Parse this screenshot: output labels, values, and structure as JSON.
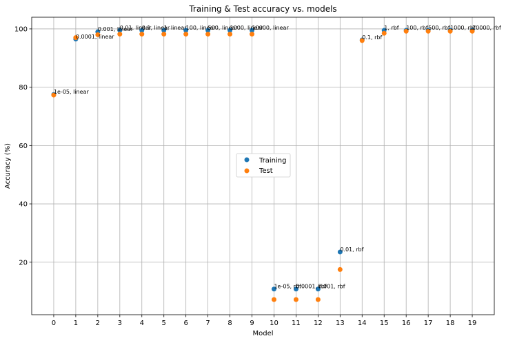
{
  "chart_data": {
    "type": "scatter",
    "title": "Training & Test accuracy vs. models",
    "xlabel": "Model",
    "ylabel": "Accuracy (%)",
    "xlim": [
      -1,
      20
    ],
    "ylim": [
      2,
      104
    ],
    "x_ticks": [
      0,
      1,
      2,
      3,
      4,
      5,
      6,
      7,
      8,
      9,
      10,
      11,
      12,
      13,
      14,
      15,
      16,
      17,
      18,
      19
    ],
    "y_ticks": [
      20,
      40,
      60,
      80,
      100
    ],
    "grid": true,
    "legend_position": "center",
    "series": [
      {
        "name": "Training",
        "color": "#1f77b4",
        "x": [
          0,
          1,
          2,
          3,
          4,
          5,
          6,
          7,
          8,
          9,
          10,
          11,
          12,
          13,
          14,
          15,
          16,
          17,
          18,
          19
        ],
        "y": [
          77.5,
          96.5,
          99,
          99.5,
          99.5,
          99.5,
          99.5,
          99.5,
          99.5,
          99.5,
          10.8,
          10.8,
          10.8,
          23.5,
          96.2,
          99.5,
          99.5,
          99.5,
          99.5,
          99.5
        ]
      },
      {
        "name": "Test",
        "color": "#ff7f0e",
        "x": [
          0,
          1,
          2,
          3,
          4,
          5,
          6,
          7,
          8,
          9,
          10,
          11,
          12,
          13,
          14,
          15,
          16,
          17,
          18,
          19
        ],
        "y": [
          77.3,
          97,
          98,
          98.2,
          98.2,
          98.2,
          98.2,
          98.2,
          98.2,
          98.2,
          7.2,
          7.2,
          7.2,
          17.5,
          96,
          98.5,
          99.2,
          99.2,
          99.2,
          99.2
        ]
      }
    ],
    "point_labels": [
      "1e-05, linear",
      "0.0001, linear",
      "0.001, linear",
      "0.01, linear",
      "0.1, linear",
      "1, linear",
      "100, linear",
      "500, linear",
      "1000, linear",
      "10000, linear",
      "1e-05, rbf",
      "0.0001, rbf",
      "0.001, rbf",
      "0.01, rbf",
      "0.1, rbf",
      "1, rbf",
      "100, rbf",
      "500, rbf",
      "1000, rbf",
      "10000, rbf"
    ]
  }
}
